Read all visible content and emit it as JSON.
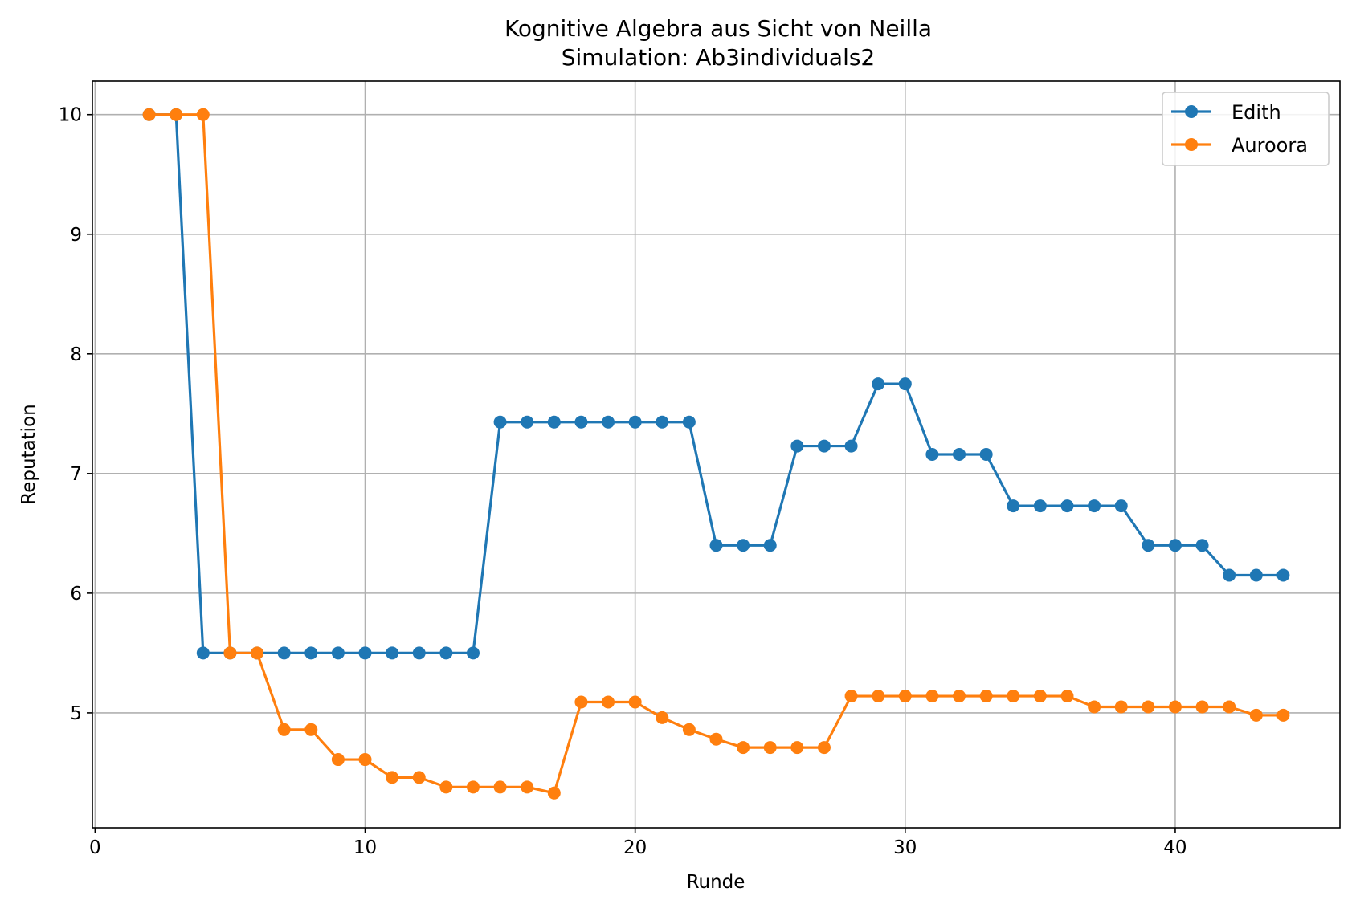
{
  "chart_data": {
    "type": "line",
    "title": "Kognitive Algebra aus Sicht von Neilla",
    "subtitle": "Simulation: Ab3individuals2",
    "xlabel": "Runde",
    "ylabel": "Reputation",
    "xlim": [
      -0.1,
      46.1
    ],
    "ylim": [
      4.04,
      10.28
    ],
    "xticks": [
      0,
      10,
      20,
      30,
      40
    ],
    "yticks": [
      5,
      6,
      7,
      8,
      9,
      10
    ],
    "xtick_labels": [
      "0",
      "10",
      "20",
      "30",
      "40"
    ],
    "ytick_labels": [
      "5",
      "6",
      "7",
      "8",
      "9",
      "10"
    ],
    "grid": true,
    "legend_position": "top-right",
    "series": [
      {
        "name": "Edith",
        "color": "#1f77b4",
        "marker": "circle",
        "x": [
          2,
          3,
          4,
          5,
          6,
          7,
          8,
          9,
          10,
          11,
          12,
          13,
          14,
          15,
          16,
          17,
          18,
          19,
          20,
          21,
          22,
          23,
          24,
          25,
          26,
          27,
          28,
          29,
          30,
          31,
          32,
          33,
          34,
          35,
          36,
          37,
          38,
          39,
          40,
          41,
          42,
          43,
          44
        ],
        "values": [
          10,
          10,
          5.5,
          5.5,
          5.5,
          5.5,
          5.5,
          5.5,
          5.5,
          5.5,
          5.5,
          5.5,
          5.5,
          7.43,
          7.43,
          7.43,
          7.43,
          7.43,
          7.43,
          7.43,
          7.43,
          6.4,
          6.4,
          6.4,
          7.23,
          7.23,
          7.23,
          7.75,
          7.75,
          7.16,
          7.16,
          7.16,
          6.73,
          6.73,
          6.73,
          6.73,
          6.73,
          6.4,
          6.4,
          6.4,
          6.15,
          6.15,
          6.15
        ]
      },
      {
        "name": "Auroora",
        "color": "#ff7f0e",
        "marker": "circle",
        "x": [
          2,
          3,
          4,
          5,
          6,
          7,
          8,
          9,
          10,
          11,
          12,
          13,
          14,
          15,
          16,
          17,
          18,
          19,
          20,
          21,
          22,
          23,
          24,
          25,
          26,
          27,
          28,
          29,
          30,
          31,
          32,
          33,
          34,
          35,
          36,
          37,
          38,
          39,
          40,
          41,
          42,
          43,
          44
        ],
        "values": [
          10,
          10,
          10,
          5.5,
          5.5,
          4.86,
          4.86,
          4.61,
          4.61,
          4.46,
          4.46,
          4.38,
          4.38,
          4.38,
          4.38,
          4.33,
          5.09,
          5.09,
          5.09,
          4.96,
          4.86,
          4.78,
          4.71,
          4.71,
          4.71,
          4.71,
          5.14,
          5.14,
          5.14,
          5.14,
          5.14,
          5.14,
          5.14,
          5.14,
          5.14,
          5.05,
          5.05,
          5.05,
          5.05,
          5.05,
          5.05,
          4.98,
          4.98
        ]
      }
    ]
  }
}
